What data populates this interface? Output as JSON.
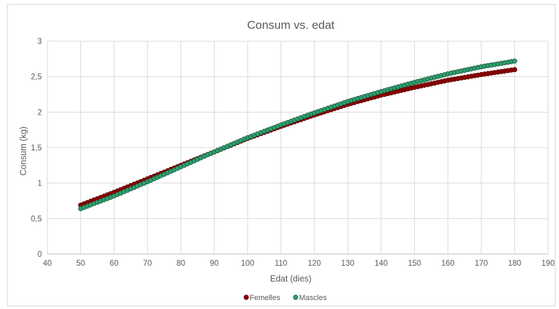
{
  "chart_data": {
    "type": "scatter",
    "title": "Consum vs. edat",
    "xlabel": "Edat (dies)",
    "ylabel": "Consum (kg)",
    "xlim": [
      40,
      190
    ],
    "ylim": [
      0,
      3
    ],
    "xticks": [
      "40",
      "50",
      "60",
      "70",
      "80",
      "90",
      "100",
      "110",
      "120",
      "130",
      "140",
      "150",
      "160",
      "170",
      "180",
      "190"
    ],
    "yticks": [
      "0",
      "0,5",
      "1",
      "1,5",
      "2",
      "2,5",
      "3"
    ],
    "grid": "vertical and horizontal major gridlines",
    "legend_position": "bottom",
    "series": [
      {
        "name": "Femelles",
        "color": "#8b0000",
        "x": [
          50,
          60,
          70,
          80,
          90,
          100,
          110,
          120,
          130,
          140,
          150,
          160,
          170,
          180
        ],
        "y": [
          0.69,
          0.87,
          1.06,
          1.25,
          1.44,
          1.63,
          1.8,
          1.96,
          2.11,
          2.24,
          2.35,
          2.45,
          2.53,
          2.6
        ]
      },
      {
        "name": "Mascles",
        "color": "#2e9e6e",
        "x": [
          50,
          60,
          70,
          80,
          90,
          100,
          110,
          120,
          130,
          140,
          150,
          160,
          170,
          180
        ],
        "y": [
          0.64,
          0.82,
          1.02,
          1.23,
          1.44,
          1.64,
          1.82,
          1.99,
          2.15,
          2.29,
          2.42,
          2.54,
          2.64,
          2.72
        ]
      }
    ]
  }
}
